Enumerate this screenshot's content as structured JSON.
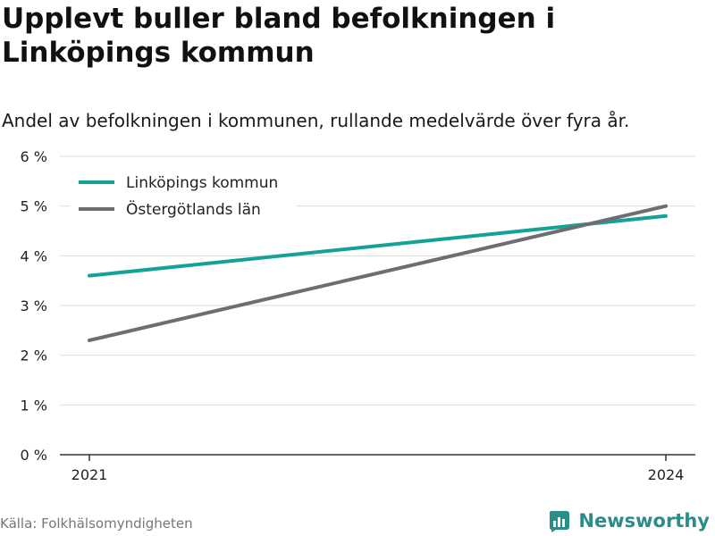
{
  "header": {
    "title": "Upplevt buller bland befolkningen i Linköpings kommun",
    "subtitle": "Andel av befolkningen i kommunen, rullande medelvärde över fyra år."
  },
  "footer": {
    "source": "Källa: Folkhälsomyndigheten",
    "brand_name": "Newsworthy",
    "brand_icon": "newsworthy-logo-icon"
  },
  "chart_data": {
    "type": "line",
    "title": "Upplevt buller bland befolkningen i Linköpings kommun",
    "subtitle": "Andel av befolkningen i kommunen, rullande medelvärde över fyra år.",
    "x": [
      2021,
      2024
    ],
    "x_tick_labels": [
      "2021",
      "2024"
    ],
    "ylim": [
      0,
      6
    ],
    "y_ticks": [
      0,
      1,
      2,
      3,
      4,
      5,
      6
    ],
    "y_tick_labels": [
      "0 %",
      "1 %",
      "2 %",
      "3 %",
      "4 %",
      "5 %",
      "6 %"
    ],
    "grid": true,
    "legend_position": "top-left",
    "series": [
      {
        "name": "Linköpings kommun",
        "values": [
          3.6,
          4.8
        ],
        "color": "#13a299"
      },
      {
        "name": "Östergötlands län",
        "values": [
          2.3,
          5.0
        ],
        "color": "#6e6d73"
      }
    ]
  }
}
